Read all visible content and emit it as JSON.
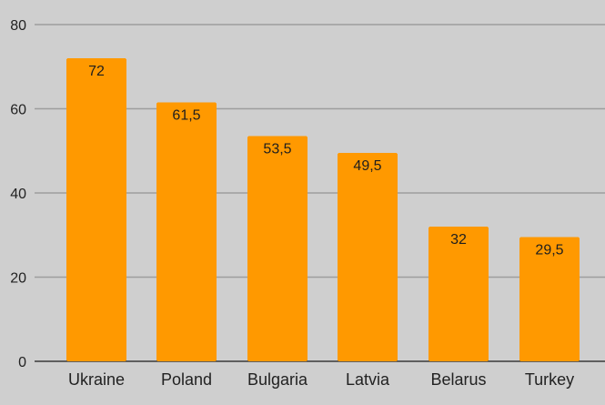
{
  "chart_data": {
    "type": "bar",
    "categories": [
      "Ukraine",
      "Poland",
      "Bulgaria",
      "Latvia",
      "Belarus",
      "Turkey"
    ],
    "values": [
      72,
      61.5,
      53.5,
      49.5,
      32,
      29.5
    ],
    "data_labels": [
      "72",
      "61,5",
      "53,5",
      "49,5",
      "32",
      "29,5"
    ],
    "ylim": [
      0,
      80
    ],
    "yticks": [
      0,
      20,
      40,
      60,
      80
    ],
    "grid": true,
    "legend": "none",
    "bar_color": "#ff9900",
    "background_color": "#cfcfcf"
  }
}
